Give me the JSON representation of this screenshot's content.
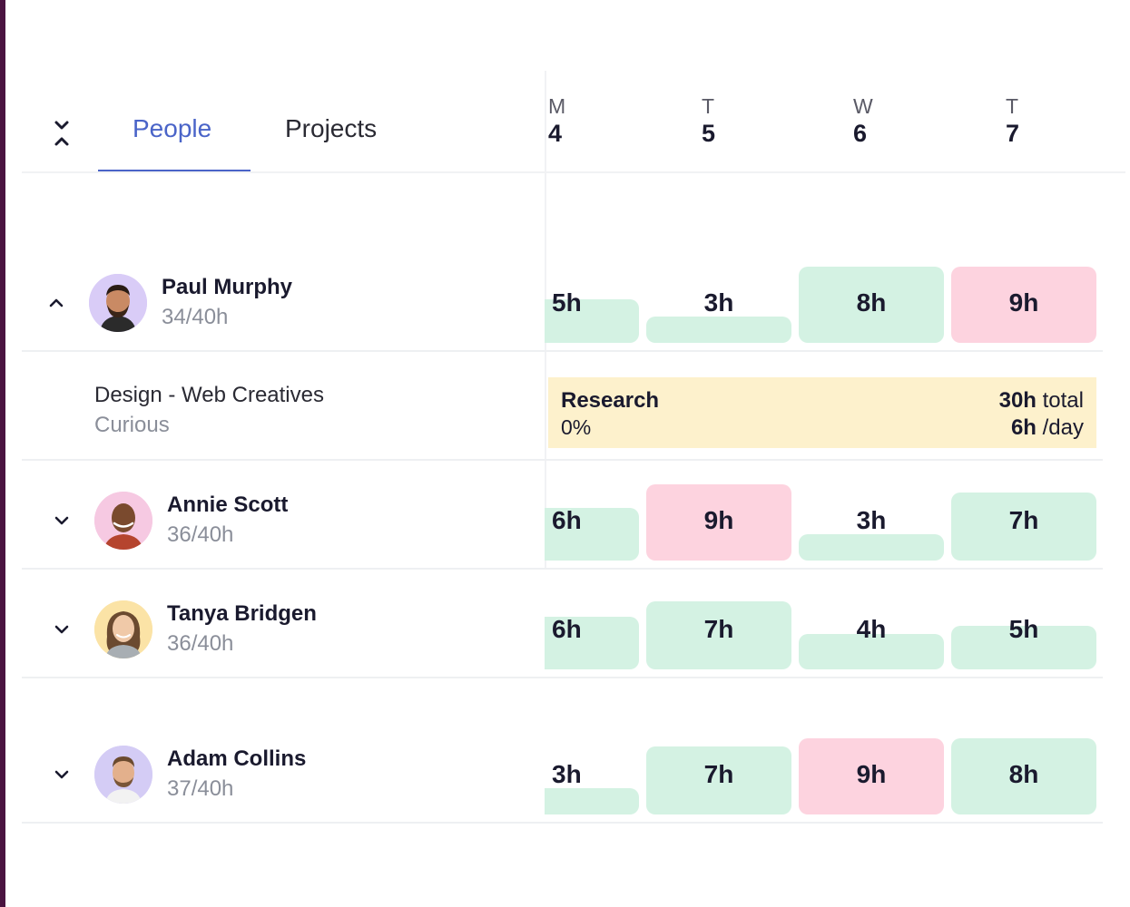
{
  "tabs": [
    {
      "label": "People",
      "active": true
    },
    {
      "label": "Projects",
      "active": false
    }
  ],
  "days": [
    {
      "letter": "M",
      "num": "4"
    },
    {
      "letter": "T",
      "num": "5"
    },
    {
      "letter": "W",
      "num": "6"
    },
    {
      "letter": "T",
      "num": "7"
    }
  ],
  "people": [
    {
      "name": "Paul Murphy",
      "hours": "34/40h",
      "expanded": true,
      "cells": [
        {
          "label": "5h",
          "status": "under",
          "fill": 0.55
        },
        {
          "label": "3h",
          "status": "under",
          "fill": 0.33
        },
        {
          "label": "8h",
          "status": "ok",
          "fill": 0.96
        },
        {
          "label": "9h",
          "status": "over",
          "fill": 0.96
        }
      ]
    },
    {
      "name": "Annie Scott",
      "hours": "36/40h",
      "expanded": false,
      "cells": [
        {
          "label": "6h",
          "status": "under",
          "fill": 0.66
        },
        {
          "label": "9h",
          "status": "over",
          "fill": 0.96
        },
        {
          "label": "3h",
          "status": "under",
          "fill": 0.33
        },
        {
          "label": "7h",
          "status": "ok",
          "fill": 0.85
        }
      ]
    },
    {
      "name": "Tanya Bridgen",
      "hours": "36/40h",
      "expanded": false,
      "cells": [
        {
          "label": "6h",
          "status": "under",
          "fill": 0.66
        },
        {
          "label": "7h",
          "status": "ok",
          "fill": 0.85
        },
        {
          "label": "4h",
          "status": "under",
          "fill": 0.44
        },
        {
          "label": "5h",
          "status": "under",
          "fill": 0.55
        }
      ]
    },
    {
      "name": "Adam Collins",
      "hours": "37/40h",
      "expanded": false,
      "cells": [
        {
          "label": "3h",
          "status": "under",
          "fill": 0.33
        },
        {
          "label": "7h",
          "status": "ok",
          "fill": 0.85
        },
        {
          "label": "9h",
          "status": "over",
          "fill": 0.96
        },
        {
          "label": "8h",
          "status": "ok",
          "fill": 0.96
        }
      ]
    }
  ],
  "project": {
    "name": "Design - Web Creatives",
    "client": "Curious",
    "task": "Research",
    "percent": "0%",
    "total_value": "30h",
    "total_unit": "total",
    "per_day_value": "6h",
    "per_day_unit": "/day"
  },
  "colors": {
    "accent": "#4a64c8",
    "ok": "#d4f2e3",
    "over": "#fdd3df",
    "task_bar": "#fdf1cc"
  },
  "icons": {
    "collapse_all": "collapse-all-icon",
    "chevron_up": "chevron-up-icon",
    "chevron_down": "chevron-down-icon"
  }
}
